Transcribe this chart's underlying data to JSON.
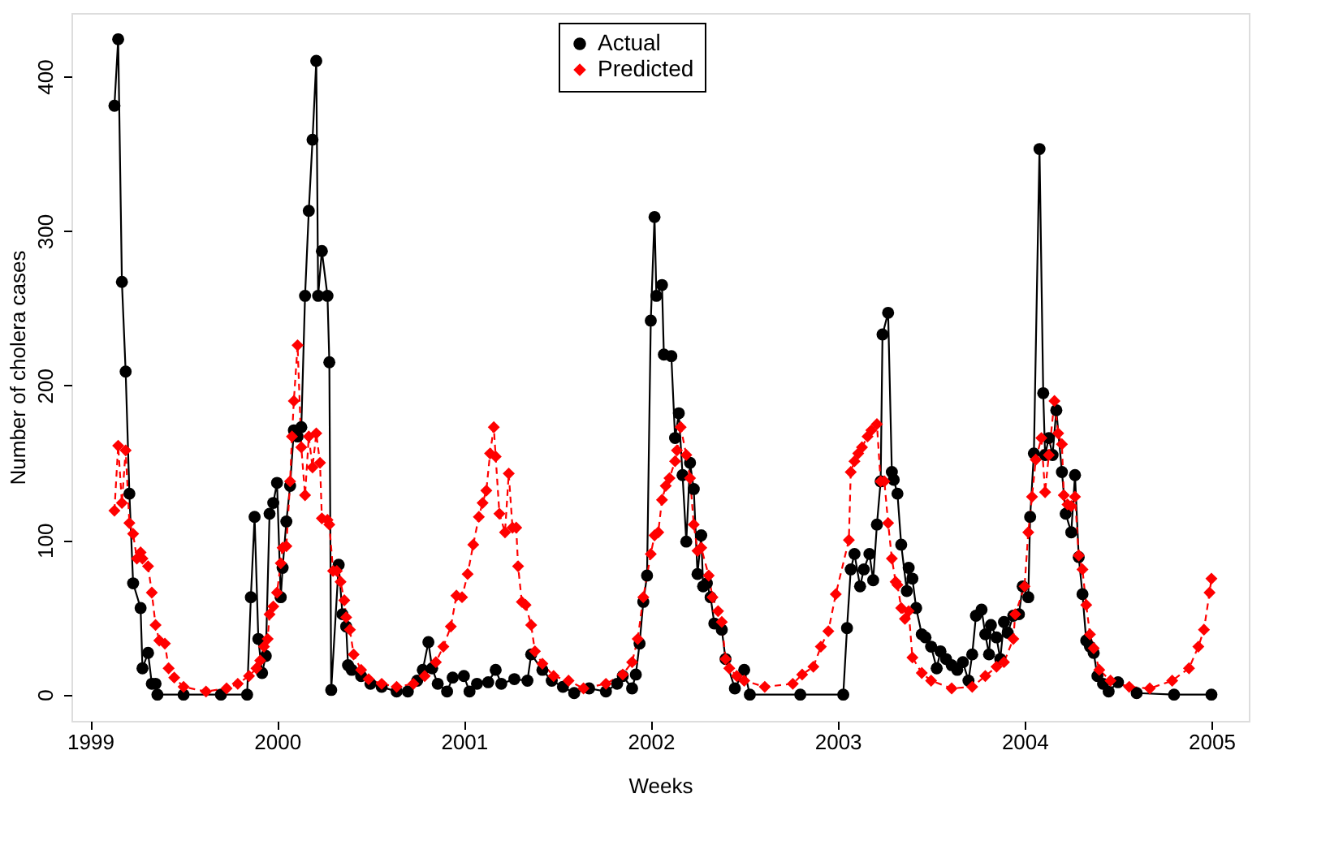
{
  "chart_data": {
    "type": "line",
    "xlabel": "Weeks",
    "ylabel": "Number of cholera cases",
    "xlim": [
      1998.9,
      2005.2
    ],
    "ylim": [
      -17,
      441
    ],
    "xticks": [
      1999,
      2000,
      2001,
      2002,
      2003,
      2004,
      2005
    ],
    "yticks": [
      0,
      100,
      200,
      300,
      400
    ],
    "grid": false,
    "legend": "top",
    "series": [
      {
        "name": "Actual",
        "color": "#000000",
        "marker": "circle",
        "line_style": "solid",
        "x": [
          1999.13,
          1999.15,
          1999.17,
          1999.19,
          1999.21,
          1999.23,
          1999.27,
          1999.28,
          1999.31,
          1999.33,
          1999.35,
          1999.36,
          1999.5,
          1999.7,
          1999.84,
          1999.86,
          1999.88,
          1999.9,
          1999.92,
          1999.94,
          1999.96,
          1999.98,
          2000.0,
          2000.02,
          2000.03,
          2000.05,
          2000.07,
          2000.09,
          2000.11,
          2000.13,
          2000.15,
          2000.17,
          2000.19,
          2000.21,
          2000.22,
          2000.24,
          2000.27,
          2000.28,
          2000.29,
          2000.33,
          2000.35,
          2000.37,
          2000.38,
          2000.4,
          2000.45,
          2000.5,
          2000.56,
          2000.64,
          2000.7,
          2000.75,
          2000.78,
          2000.81,
          2000.83,
          2000.86,
          2000.91,
          2000.94,
          2001.0,
          2001.03,
          2001.07,
          2001.13,
          2001.17,
          2001.2,
          2001.27,
          2001.34,
          2001.36,
          2001.42,
          2001.47,
          2001.53,
          2001.59,
          2001.67,
          2001.76,
          2001.82,
          2001.85,
          2001.9,
          2001.92,
          2001.94,
          2001.96,
          2001.98,
          2002.0,
          2002.02,
          2002.03,
          2002.06,
          2002.07,
          2002.11,
          2002.13,
          2002.15,
          2002.17,
          2002.19,
          2002.21,
          2002.23,
          2002.25,
          2002.27,
          2002.28,
          2002.3,
          2002.32,
          2002.34,
          2002.38,
          2002.4,
          2002.45,
          2002.5,
          2002.53,
          2002.8,
          2003.03,
          2003.05,
          2003.07,
          2003.09,
          2003.12,
          2003.14,
          2003.17,
          2003.19,
          2003.21,
          2003.23,
          2003.24,
          2003.27,
          2003.29,
          2003.3,
          2003.32,
          2003.34,
          2003.37,
          2003.38,
          2003.4,
          2003.42,
          2003.45,
          2003.47,
          2003.5,
          2003.53,
          2003.55,
          2003.58,
          2003.61,
          2003.64,
          2003.67,
          2003.7,
          2003.72,
          2003.74,
          2003.77,
          2003.79,
          2003.81,
          2003.82,
          2003.85,
          2003.87,
          2003.89,
          2003.91,
          2003.94,
          2003.97,
          2003.99,
          2004.02,
          2004.03,
          2004.05,
          2004.08,
          2004.1,
          2004.11,
          2004.13,
          2004.15,
          2004.17,
          2004.2,
          2004.22,
          2004.25,
          2004.27,
          2004.29,
          2004.31,
          2004.33,
          2004.35,
          2004.37,
          2004.39,
          2004.42,
          2004.45,
          2004.5,
          2004.6,
          2004.8,
          2005.0
        ],
        "values": [
          381,
          424,
          267,
          209,
          130,
          72,
          56,
          17,
          27,
          7,
          7,
          0,
          0,
          0,
          0,
          63,
          115,
          36,
          14,
          25,
          117,
          124,
          137,
          63,
          82,
          112,
          135,
          171,
          167,
          173,
          258,
          313,
          359,
          410,
          258,
          287,
          258,
          215,
          3,
          84,
          52,
          44,
          19,
          16,
          12,
          7,
          5,
          2,
          2,
          9,
          16,
          34,
          17,
          7,
          2,
          11,
          12,
          2,
          7,
          8,
          16,
          7,
          10,
          9,
          26,
          16,
          9,
          5,
          1,
          4,
          2,
          7,
          12,
          4,
          13,
          33,
          60,
          77,
          242,
          309,
          258,
          265,
          220,
          219,
          166,
          182,
          142,
          99,
          150,
          133,
          78,
          103,
          70,
          72,
          63,
          46,
          42,
          23,
          4,
          16,
          0,
          0,
          0,
          43,
          81,
          91,
          70,
          81,
          91,
          74,
          110,
          138,
          233,
          247,
          144,
          139,
          130,
          97,
          67,
          82,
          75,
          56,
          39,
          37,
          31,
          17,
          28,
          23,
          19,
          16,
          21,
          9,
          26,
          51,
          55,
          39,
          26,
          45,
          37,
          23,
          47,
          40,
          51,
          52,
          70,
          63,
          115,
          156,
          353,
          195,
          155,
          166,
          155,
          184,
          144,
          117,
          105,
          142,
          89,
          65,
          35,
          31,
          27,
          12,
          7,
          2,
          8,
          1,
          0,
          0
        ]
      },
      {
        "name": "Predicted",
        "color": "#ff0000",
        "marker": "diamond",
        "line_style": "dashed",
        "x": [
          1999.13,
          1999.15,
          1999.17,
          1999.19,
          1999.21,
          1999.23,
          1999.25,
          1999.27,
          1999.28,
          1999.31,
          1999.33,
          1999.35,
          1999.37,
          1999.4,
          1999.42,
          1999.45,
          1999.5,
          1999.62,
          1999.73,
          1999.79,
          1999.85,
          1999.89,
          1999.91,
          1999.93,
          1999.95,
          1999.96,
          1999.98,
          2000.0,
          2000.02,
          2000.03,
          2000.05,
          2000.07,
          2000.08,
          2000.09,
          2000.11,
          2000.13,
          2000.15,
          2000.17,
          2000.19,
          2000.21,
          2000.23,
          2000.24,
          2000.27,
          2000.28,
          2000.3,
          2000.32,
          2000.34,
          2000.36,
          2000.37,
          2000.39,
          2000.41,
          2000.45,
          2000.49,
          2000.56,
          2000.64,
          2000.73,
          2000.79,
          2000.85,
          2000.89,
          2000.93,
          2000.96,
          2000.99,
          2001.02,
          2001.05,
          2001.08,
          2001.1,
          2001.12,
          2001.14,
          2001.16,
          2001.17,
          2001.19,
          2001.22,
          2001.24,
          2001.26,
          2001.28,
          2001.29,
          2001.31,
          2001.33,
          2001.36,
          2001.38,
          2001.42,
          2001.48,
          2001.56,
          2001.64,
          2001.76,
          2001.85,
          2001.9,
          2001.93,
          2001.96,
          2002.0,
          2002.02,
          2002.04,
          2002.06,
          2002.08,
          2002.1,
          2002.13,
          2002.14,
          2002.16,
          2002.19,
          2002.21,
          2002.23,
          2002.25,
          2002.27,
          2002.31,
          2002.33,
          2002.36,
          2002.38,
          2002.4,
          2002.42,
          2002.46,
          2002.5,
          2002.61,
          2002.76,
          2002.81,
          2002.87,
          2002.91,
          2002.95,
          2002.99,
          2003.06,
          2003.07,
          2003.09,
          2003.11,
          2003.13,
          2003.16,
          2003.18,
          2003.21,
          2003.23,
          2003.25,
          2003.27,
          2003.29,
          2003.31,
          2003.32,
          2003.34,
          2003.36,
          2003.38,
          2003.4,
          2003.45,
          2003.5,
          2003.61,
          2003.72,
          2003.79,
          2003.85,
          2003.89,
          2003.94,
          2003.95,
          2004.0,
          2004.02,
          2004.04,
          2004.06,
          2004.09,
          2004.11,
          2004.13,
          2004.16,
          2004.18,
          2004.2,
          2004.21,
          2004.23,
          2004.25,
          2004.27,
          2004.29,
          2004.31,
          2004.33,
          2004.35,
          2004.37,
          2004.4,
          2004.46,
          2004.56,
          2004.67,
          2004.79,
          2004.88,
          2004.93,
          2004.96,
          2004.99,
          2005.0
        ],
        "values": [
          119,
          161,
          124,
          158,
          111,
          104,
          88,
          92,
          88,
          83,
          66,
          45,
          35,
          33,
          17,
          11,
          5,
          2,
          4,
          7,
          12,
          17,
          22,
          31,
          36,
          52,
          57,
          66,
          85,
          95,
          96,
          138,
          167,
          190,
          226,
          160,
          129,
          167,
          147,
          169,
          150,
          114,
          113,
          110,
          80,
          80,
          73,
          61,
          50,
          42,
          26,
          16,
          10,
          7,
          5,
          7,
          12,
          21,
          31,
          44,
          64,
          63,
          78,
          97,
          115,
          124,
          132,
          156,
          173,
          154,
          117,
          105,
          143,
          108,
          108,
          83,
          60,
          58,
          45,
          28,
          20,
          12,
          9,
          4,
          7,
          13,
          21,
          36,
          63,
          91,
          103,
          105,
          126,
          135,
          140,
          151,
          158,
          173,
          155,
          140,
          110,
          93,
          95,
          77,
          63,
          54,
          47,
          23,
          17,
          12,
          9,
          5,
          7,
          13,
          18,
          31,
          41,
          65,
          100,
          144,
          151,
          156,
          160,
          167,
          171,
          175,
          138,
          138,
          111,
          88,
          73,
          71,
          56,
          49,
          54,
          24,
          14,
          9,
          4,
          5,
          12,
          18,
          21,
          36,
          52,
          70,
          105,
          128,
          152,
          166,
          131,
          155,
          190,
          169,
          162,
          129,
          123,
          122,
          128,
          90,
          81,
          58,
          39,
          30,
          16,
          9,
          5,
          4,
          9,
          17,
          31,
          42,
          66,
          75
        ]
      }
    ]
  }
}
